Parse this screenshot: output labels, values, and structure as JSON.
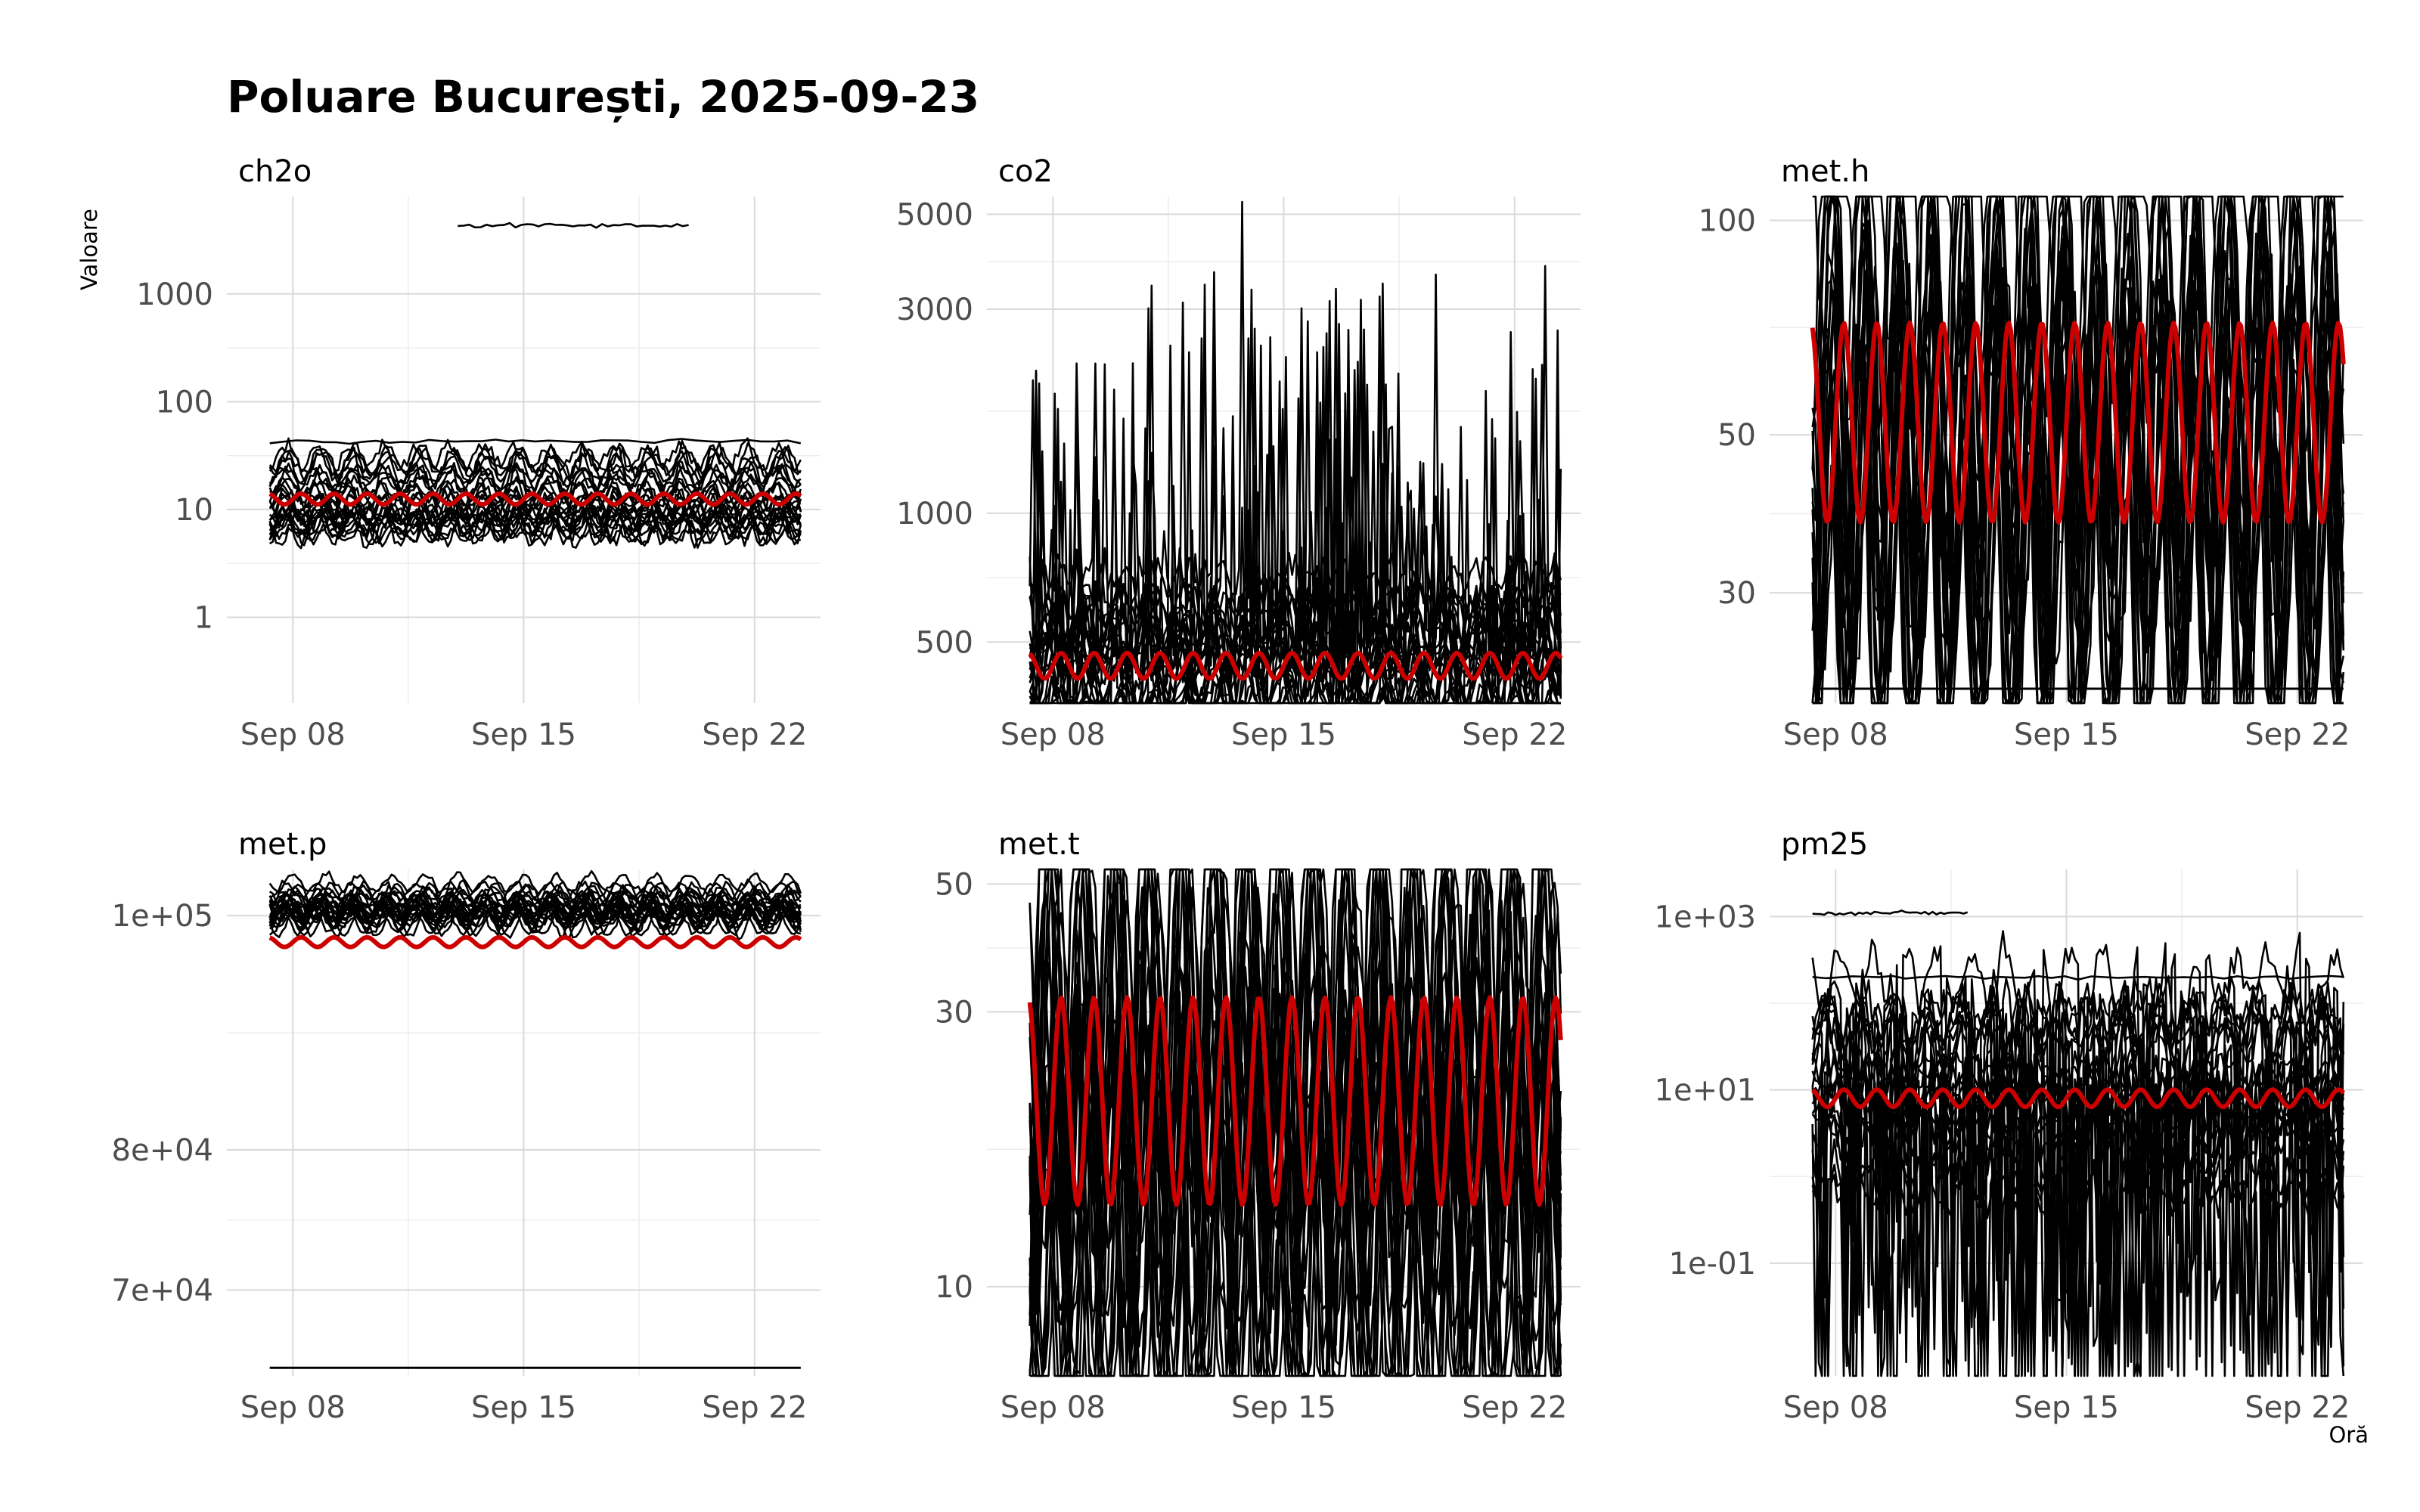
{
  "chart_data": {
    "type": "line",
    "title": "Poluare București, 2025-09-23",
    "xlabel": "Oră",
    "ylabel": "Valoare",
    "x_range": [
      "2025-09-06",
      "2025-09-24"
    ],
    "x_ticks": [
      "Sep 08",
      "Sep 15",
      "Sep 22"
    ],
    "raw_line_color": "#000000",
    "mean_line_color": "#cc0000",
    "panels": [
      {
        "name": "ch2o",
        "scale": "log10",
        "ylim": [
          0.16,
          8000
        ],
        "ticks": [
          {
            "v": 1,
            "label": "1"
          },
          {
            "v": 10,
            "label": "10"
          },
          {
            "v": 100,
            "label": "100"
          },
          {
            "v": 1000,
            "label": "1000"
          }
        ],
        "sensor_median": 12,
        "sensor_spread": 0.25,
        "mean_level": 12.5,
        "mean_daily_amplitude": 0.05,
        "outlier_series": [
          {
            "start": "2025-09-13",
            "end": "2025-09-20",
            "level": 4300
          },
          {
            "start": "2025-09-06",
            "end": "2025-09-24",
            "level": 43
          }
        ]
      },
      {
        "name": "co2",
        "scale": "log10",
        "ylim": [
          360,
          5500
        ],
        "ticks": [
          {
            "v": 500,
            "label": "500"
          },
          {
            "v": 1000,
            "label": "1000"
          },
          {
            "v": 3000,
            "label": "3000"
          },
          {
            "v": 5000,
            "label": "5000"
          }
        ],
        "sensor_median": 470,
        "sensor_spread": 0.15,
        "mean_level": 440,
        "mean_daily_amplitude": 0.03,
        "peak_max": 4700
      },
      {
        "name": "met.h",
        "scale": "log10",
        "ylim": [
          21,
          108
        ],
        "ticks": [
          {
            "v": 30,
            "label": "30"
          },
          {
            "v": 50,
            "label": "50"
          },
          {
            "v": 100,
            "label": "100"
          }
        ],
        "sensor_median": 52,
        "sensor_spread": 0.3,
        "mean_level": 52,
        "mean_daily_amplitude": 0.14,
        "floor_series_level": 22
      },
      {
        "name": "met.p",
        "scale": "log10",
        "ylim": [
          64500,
          104500
        ],
        "ticks": [
          {
            "v": 70000,
            "label": "7e+04"
          },
          {
            "v": 80000,
            "label": "8e+04"
          },
          {
            "v": 100000,
            "label": "1e+05"
          }
        ],
        "sensor_median": 101000,
        "sensor_spread": 0.006,
        "mean_level": 97500,
        "mean_daily_amplitude": 0.002,
        "floor_series_level": 65000
      },
      {
        "name": "met.t",
        "scale": "log10",
        "ylim": [
          7,
          53
        ],
        "ticks": [
          {
            "v": 10,
            "label": "10"
          },
          {
            "v": 30,
            "label": "30"
          },
          {
            "v": 50,
            "label": "50"
          }
        ],
        "sensor_median": 21,
        "sensor_spread": 0.3,
        "mean_level": 21,
        "mean_daily_amplitude": 0.18
      },
      {
        "name": "pm25",
        "scale": "log10",
        "ylim": [
          0.005,
          3500
        ],
        "ticks": [
          {
            "v": 0.1,
            "label": "1e-01"
          },
          {
            "v": 10,
            "label": "1e+01"
          },
          {
            "v": 1000,
            "label": "1e+03"
          }
        ],
        "sensor_median": 8,
        "sensor_spread": 1.0,
        "mean_level": 8,
        "mean_daily_amplitude": 0.1,
        "outlier_series": [
          {
            "start": "2025-09-06",
            "end": "2025-09-12",
            "level": 1100
          },
          {
            "start": "2025-09-06",
            "end": "2025-09-24",
            "level": 200
          }
        ]
      }
    ]
  }
}
